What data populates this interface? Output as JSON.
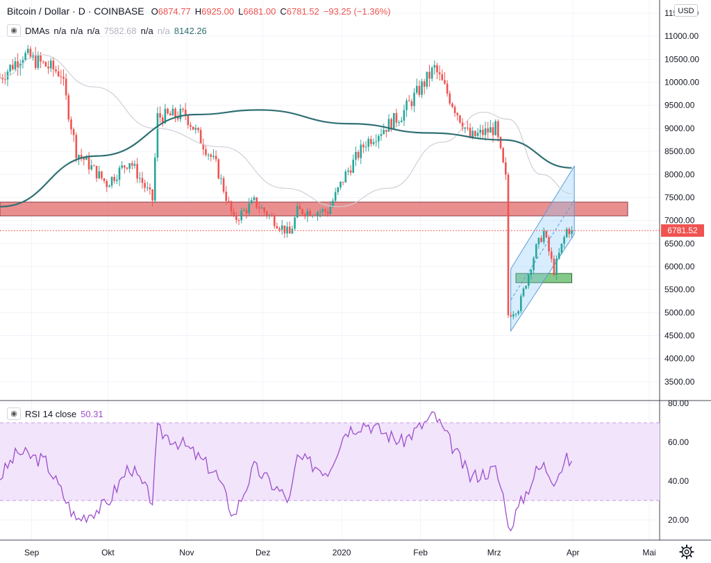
{
  "header": {
    "symbol": "Bitcoin / Dollar · D · COINBASE",
    "o_label": "O",
    "o_value": "6874.77",
    "h_label": "H",
    "h_value": "6925.00",
    "l_label": "L",
    "l_value": "6681.00",
    "c_label": "C",
    "c_value": "6781.52",
    "change": "−93.25 (−1.36%)"
  },
  "dma_legend": {
    "name": "DMAs",
    "values": [
      "n/a",
      "n/a",
      "n/a",
      "7582.68",
      "n/a",
      "n/a",
      "8142.26"
    ]
  },
  "rsi_legend": {
    "name": "RSI",
    "params": "14 close",
    "value": "50.31"
  },
  "currency_badge": "USD",
  "last_price_tag": "6781.52",
  "colors": {
    "up": "#26a69a",
    "down": "#ef5350",
    "ma200": "#2f6f73",
    "ma50": "#cfcfd6",
    "rsi": "#9c4dcc",
    "resistance_zone": "#e57373",
    "support_zone": "#66bb6a",
    "channel": "#90caf9"
  },
  "icons": {
    "settings": "gear-icon",
    "visibility": "eye-icon"
  },
  "chart_data": [
    {
      "type": "candlestick",
      "title": "Bitcoin / Dollar · D · COINBASE",
      "x_ticks": [
        "Sep",
        "Okt",
        "Nov",
        "Dez",
        "2020",
        "Feb",
        "Mrz",
        "Apr",
        "Mai"
      ],
      "y_ticks": [
        3500,
        4000,
        4500,
        5000,
        5500,
        6000,
        6500,
        7000,
        7500,
        8000,
        8500,
        9000,
        9500,
        10000,
        10500,
        11000,
        11500
      ],
      "ylim": [
        3300,
        11850
      ],
      "grid": true,
      "last_price": 6781.52,
      "anchors": [
        {
          "date": "2019-08-25",
          "close": 10100
        },
        {
          "date": "2019-09-03",
          "close": 10600
        },
        {
          "date": "2019-09-18",
          "close": 10200
        },
        {
          "date": "2019-09-24",
          "close": 8500
        },
        {
          "date": "2019-10-06",
          "close": 7800
        },
        {
          "date": "2019-10-15",
          "close": 8300
        },
        {
          "date": "2019-10-24",
          "close": 7450
        },
        {
          "date": "2019-10-26",
          "close": 9250
        },
        {
          "date": "2019-11-06",
          "close": 9300
        },
        {
          "date": "2019-11-18",
          "close": 8200
        },
        {
          "date": "2019-11-25",
          "close": 7000
        },
        {
          "date": "2019-12-03",
          "close": 7400
        },
        {
          "date": "2019-12-17",
          "close": 6700
        },
        {
          "date": "2019-12-20",
          "close": 7200
        },
        {
          "date": "2020-01-01",
          "close": 7200
        },
        {
          "date": "2020-01-08",
          "close": 8000
        },
        {
          "date": "2020-01-16",
          "close": 8700
        },
        {
          "date": "2020-01-30",
          "close": 9300
        },
        {
          "date": "2020-02-12",
          "close": 10300
        },
        {
          "date": "2020-02-26",
          "close": 8800
        },
        {
          "date": "2020-03-07",
          "close": 9000
        },
        {
          "date": "2020-03-11",
          "close": 7900
        },
        {
          "date": "2020-03-12",
          "close": 4950
        },
        {
          "date": "2020-03-16",
          "close": 5100
        },
        {
          "date": "2020-03-23",
          "close": 6400
        },
        {
          "date": "2020-03-26",
          "close": 6750
        },
        {
          "date": "2020-03-30",
          "close": 5900
        },
        {
          "date": "2020-04-04",
          "close": 6800
        },
        {
          "date": "2020-04-06",
          "close": 6781.52
        }
      ],
      "ma200": {
        "name": "DMA 200",
        "last_value": 8142.26,
        "points": [
          [
            "2019-08-25",
            7300
          ],
          [
            "2019-10-02",
            8400
          ],
          [
            "2019-11-10",
            9300
          ],
          [
            "2019-12-05",
            9400
          ],
          [
            "2020-01-10",
            9100
          ],
          [
            "2020-02-10",
            8900
          ],
          [
            "2020-03-10",
            8750
          ],
          [
            "2020-04-06",
            8142.26
          ]
        ]
      },
      "ma50": {
        "name": "DMA 50",
        "last_value": 7582.68,
        "points": [
          [
            "2019-08-25",
            10100
          ],
          [
            "2019-09-10",
            10600
          ],
          [
            "2019-10-01",
            9900
          ],
          [
            "2019-10-25",
            9000
          ],
          [
            "2019-11-20",
            8600
          ],
          [
            "2019-12-15",
            7700
          ],
          [
            "2020-01-05",
            7300
          ],
          [
            "2020-01-25",
            7700
          ],
          [
            "2020-02-15",
            8700
          ],
          [
            "2020-03-02",
            9350
          ],
          [
            "2020-03-12",
            9200
          ],
          [
            "2020-03-25",
            8000
          ],
          [
            "2020-04-06",
            7582.68
          ]
        ]
      },
      "zones": [
        {
          "name": "resistance",
          "from_date": "2019-08-25",
          "to_date": "2020-04-28",
          "y_low": 7100,
          "y_high": 7400
        },
        {
          "name": "support",
          "from_date": "2020-03-15",
          "to_date": "2020-04-06",
          "y_low": 5650,
          "y_high": 5850
        }
      ],
      "channel": {
        "start_date": "2020-03-13",
        "end_date": "2020-04-07",
        "start_lower": 4600,
        "start_upper": 5950,
        "end_lower": 6700,
        "end_upper": 8180
      }
    },
    {
      "type": "line",
      "title": "RSI 14 close",
      "value": 50.31,
      "y_ticks": [
        20,
        40,
        60,
        80
      ],
      "ylim": [
        10.5,
        81
      ],
      "band": [
        30,
        70
      ],
      "anchors": [
        {
          "date": "2019-08-25",
          "value": 42
        },
        {
          "date": "2019-09-01",
          "value": 55
        },
        {
          "date": "2019-09-12",
          "value": 50
        },
        {
          "date": "2019-09-24",
          "value": 20
        },
        {
          "date": "2019-10-06",
          "value": 28
        },
        {
          "date": "2019-10-15",
          "value": 48
        },
        {
          "date": "2019-10-24",
          "value": 30
        },
        {
          "date": "2019-10-26",
          "value": 66
        },
        {
          "date": "2019-11-06",
          "value": 58
        },
        {
          "date": "2019-11-18",
          "value": 44
        },
        {
          "date": "2019-11-25",
          "value": 22
        },
        {
          "date": "2019-12-03",
          "value": 47
        },
        {
          "date": "2019-12-17",
          "value": 30
        },
        {
          "date": "2019-12-20",
          "value": 52
        },
        {
          "date": "2020-01-01",
          "value": 45
        },
        {
          "date": "2020-01-08",
          "value": 66
        },
        {
          "date": "2020-01-16",
          "value": 70
        },
        {
          "date": "2020-01-30",
          "value": 60
        },
        {
          "date": "2020-02-12",
          "value": 74
        },
        {
          "date": "2020-02-26",
          "value": 42
        },
        {
          "date": "2020-03-07",
          "value": 46
        },
        {
          "date": "2020-03-11",
          "value": 28
        },
        {
          "date": "2020-03-12",
          "value": 15
        },
        {
          "date": "2020-03-16",
          "value": 26
        },
        {
          "date": "2020-03-23",
          "value": 45
        },
        {
          "date": "2020-03-26",
          "value": 48
        },
        {
          "date": "2020-03-30",
          "value": 41
        },
        {
          "date": "2020-04-04",
          "value": 51
        },
        {
          "date": "2020-04-06",
          "value": 50.31
        }
      ]
    }
  ]
}
